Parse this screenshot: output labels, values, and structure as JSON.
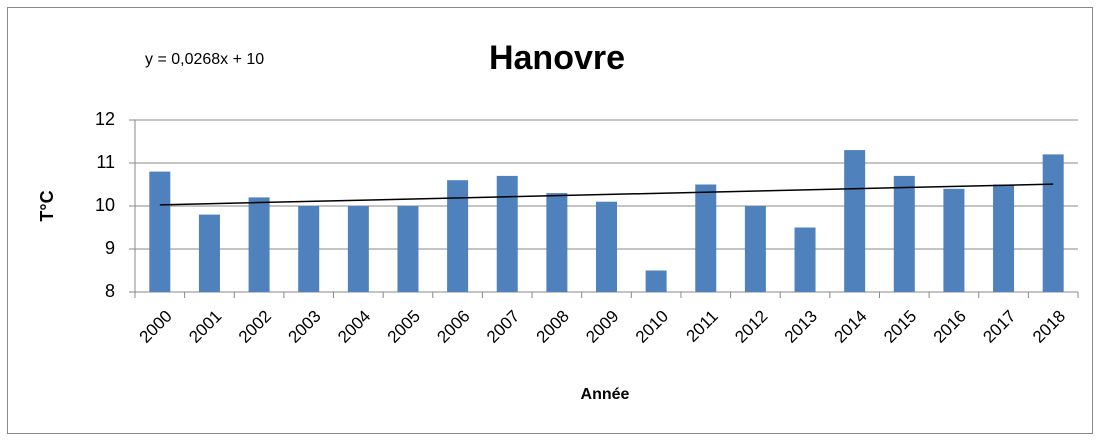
{
  "chart_data": {
    "type": "bar",
    "title": "Hanovre",
    "x_label": "Année",
    "y_label": "T°C",
    "categories": [
      "2000",
      "2001",
      "2002",
      "2003",
      "2004",
      "2005",
      "2006",
      "2007",
      "2008",
      "2009",
      "2010",
      "2011",
      "2012",
      "2013",
      "2014",
      "2015",
      "2016",
      "2017",
      "2018"
    ],
    "values": [
      10.8,
      9.8,
      10.2,
      10.0,
      10.0,
      10.0,
      10.6,
      10.7,
      10.3,
      10.1,
      8.5,
      10.5,
      10.0,
      9.5,
      11.3,
      10.7,
      10.4,
      10.5,
      11.2
    ],
    "color": "#4f81bd",
    "ylim": [
      8,
      12
    ],
    "yticks": [
      8,
      9,
      10,
      11,
      12
    ],
    "grid": true,
    "trendline": {
      "equation": "y = 0,0268x + 10",
      "slope": 0.0268,
      "intercept": 10
    }
  }
}
